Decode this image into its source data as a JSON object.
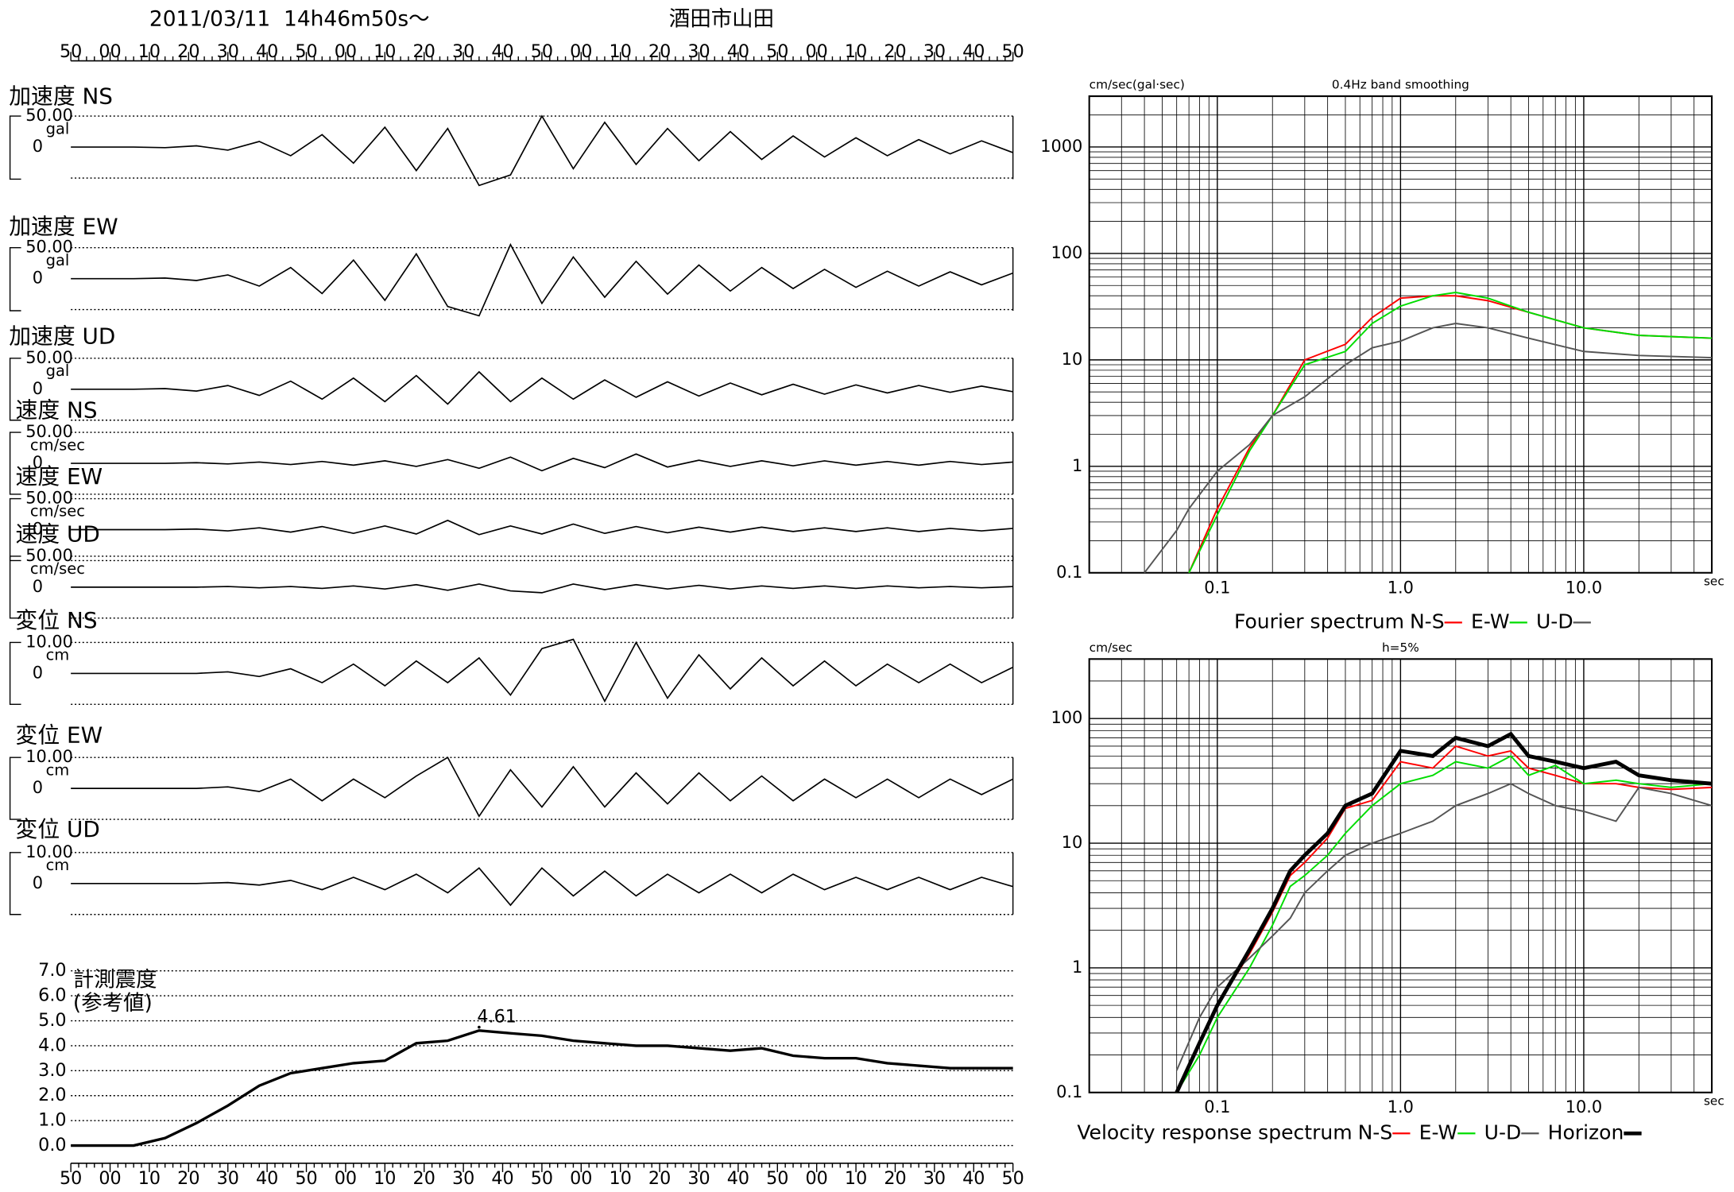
{
  "header": {
    "datetime": "2011/03/11  14h46m50s～",
    "station": "酒田市山田"
  },
  "time_labels": [
    "50",
    "00",
    "10",
    "20",
    "30",
    "40",
    "50",
    "00",
    "10",
    "20",
    "30",
    "40",
    "50",
    "00",
    "10",
    "20",
    "30",
    "40",
    "50",
    "00",
    "10",
    "20",
    "30",
    "40",
    "50"
  ],
  "chart_data": [
    {
      "type": "line",
      "title": "加速度 NS",
      "unit": "gal",
      "xlim": [
        0,
        240
      ],
      "ylim": [
        -50,
        50
      ],
      "yticks": [
        {
          "value": 50,
          "label": "50.00"
        },
        0
      ],
      "color": "#000000",
      "x": [
        0,
        8,
        16,
        24,
        32,
        40,
        48,
        56,
        64,
        72,
        80,
        88,
        96,
        104,
        112,
        120,
        128,
        136,
        144,
        152,
        160,
        168,
        176,
        184,
        192,
        200,
        208,
        216,
        224,
        232,
        240
      ],
      "values": [
        0,
        0,
        0,
        -1,
        2,
        -5,
        9,
        -14,
        20,
        -26,
        32,
        -38,
        30,
        -62,
        -45,
        50,
        -35,
        40,
        -28,
        30,
        -22,
        25,
        -20,
        18,
        -16,
        15,
        -14,
        12,
        -11,
        10,
        -9
      ]
    },
    {
      "type": "line",
      "title": "加速度 EW",
      "unit": "gal",
      "xlim": [
        0,
        240
      ],
      "ylim": [
        -50,
        50
      ],
      "yticks": [
        {
          "value": 50,
          "label": "50.00"
        },
        0
      ],
      "color": "#000000",
      "x": [
        0,
        8,
        16,
        24,
        32,
        40,
        48,
        56,
        64,
        72,
        80,
        88,
        96,
        104,
        112,
        120,
        128,
        136,
        144,
        152,
        160,
        168,
        176,
        184,
        192,
        200,
        208,
        216,
        224,
        232,
        240
      ],
      "values": [
        0,
        0,
        0,
        1,
        -3,
        6,
        -12,
        18,
        -24,
        30,
        -35,
        40,
        -45,
        -60,
        55,
        -40,
        35,
        -30,
        28,
        -25,
        22,
        -20,
        18,
        -16,
        15,
        -14,
        12,
        -12,
        11,
        -10,
        9
      ]
    },
    {
      "type": "line",
      "title": "加速度 UD",
      "unit": "gal",
      "xlim": [
        0,
        240
      ],
      "ylim": [
        -50,
        50
      ],
      "yticks": [
        {
          "value": 50,
          "label": "50.00"
        },
        0
      ],
      "color": "#000000",
      "x": [
        0,
        8,
        16,
        24,
        32,
        40,
        48,
        56,
        64,
        72,
        80,
        88,
        96,
        104,
        112,
        120,
        128,
        136,
        144,
        152,
        160,
        168,
        176,
        184,
        192,
        200,
        208,
        216,
        224,
        232,
        240
      ],
      "values": [
        0,
        0,
        0,
        1,
        -3,
        6,
        -10,
        13,
        -16,
        18,
        -20,
        22,
        -24,
        28,
        -20,
        18,
        -16,
        15,
        -13,
        12,
        -11,
        10,
        -9,
        8,
        -8,
        7,
        -6,
        6,
        -5,
        5,
        -4
      ]
    },
    {
      "type": "line",
      "title": "速度 NS",
      "unit": "cm/sec",
      "xlim": [
        0,
        240
      ],
      "ylim": [
        -50,
        50
      ],
      "yticks": [
        {
          "value": 50,
          "label": "50.00"
        },
        0
      ],
      "color": "#000000",
      "x": [
        0,
        8,
        16,
        24,
        32,
        40,
        48,
        56,
        64,
        72,
        80,
        88,
        96,
        104,
        112,
        120,
        128,
        136,
        144,
        152,
        160,
        168,
        176,
        184,
        192,
        200,
        208,
        216,
        224,
        232,
        240
      ],
      "values": [
        0,
        0,
        0,
        0,
        1,
        -1,
        2,
        -2,
        3,
        -3,
        4,
        -5,
        6,
        -8,
        10,
        -12,
        8,
        -7,
        15,
        -6,
        5,
        -5,
        4,
        -4,
        4,
        -3,
        3,
        -3,
        3,
        -2,
        2
      ]
    },
    {
      "type": "line",
      "title": "速度 EW",
      "unit": "cm/sec",
      "xlim": [
        0,
        240
      ],
      "ylim": [
        -50,
        50
      ],
      "yticks": [
        {
          "value": 50,
          "label": "50.00"
        },
        0
      ],
      "color": "#000000",
      "x": [
        0,
        8,
        16,
        24,
        32,
        40,
        48,
        56,
        64,
        72,
        80,
        88,
        96,
        104,
        112,
        120,
        128,
        136,
        144,
        152,
        160,
        168,
        176,
        184,
        192,
        200,
        208,
        216,
        224,
        232,
        240
      ],
      "values": [
        0,
        0,
        0,
        0,
        1,
        -2,
        3,
        -4,
        5,
        -6,
        6,
        -7,
        15,
        -8,
        6,
        -7,
        9,
        -6,
        5,
        -5,
        4,
        -4,
        4,
        -3,
        3,
        -3,
        3,
        -3,
        2,
        -2,
        2
      ]
    },
    {
      "type": "line",
      "title": "速度 UD",
      "unit": "cm/sec",
      "xlim": [
        0,
        240
      ],
      "ylim": [
        -50,
        50
      ],
      "yticks": [
        {
          "value": 50,
          "label": "50.00"
        },
        0
      ],
      "color": "#000000",
      "x": [
        0,
        8,
        16,
        24,
        32,
        40,
        48,
        56,
        64,
        72,
        80,
        88,
        96,
        104,
        112,
        120,
        128,
        136,
        144,
        152,
        160,
        168,
        176,
        184,
        192,
        200,
        208,
        216,
        224,
        232,
        240
      ],
      "values": [
        0,
        0,
        0,
        0,
        0,
        1,
        -1,
        1,
        -2,
        2,
        -3,
        4,
        -5,
        5,
        -6,
        -9,
        5,
        -4,
        4,
        -3,
        3,
        -3,
        2,
        -2,
        2,
        -2,
        2,
        -1,
        1,
        -1,
        1
      ]
    },
    {
      "type": "line",
      "title": "変位 NS",
      "unit": "cm",
      "xlim": [
        0,
        240
      ],
      "ylim": [
        -10,
        10
      ],
      "yticks": [
        {
          "value": 10,
          "label": "10.00"
        },
        0
      ],
      "color": "#000000",
      "x": [
        0,
        8,
        16,
        24,
        32,
        40,
        48,
        56,
        64,
        72,
        80,
        88,
        96,
        104,
        112,
        120,
        128,
        136,
        144,
        152,
        160,
        168,
        176,
        184,
        192,
        200,
        208,
        216,
        224,
        232,
        240
      ],
      "values": [
        0,
        0,
        0,
        0,
        0,
        0.5,
        -1,
        1.5,
        -3,
        3,
        -4,
        4,
        -3,
        5,
        -7,
        8,
        11,
        -9,
        10,
        -8,
        6,
        -5,
        5,
        -4,
        4,
        -4,
        3,
        -3,
        3,
        -3,
        2
      ]
    },
    {
      "type": "line",
      "title": "変位 EW",
      "unit": "cm",
      "xlim": [
        0,
        240
      ],
      "ylim": [
        -10,
        10
      ],
      "yticks": [
        {
          "value": 10,
          "label": "10.00"
        },
        0
      ],
      "color": "#000000",
      "x": [
        0,
        8,
        16,
        24,
        32,
        40,
        48,
        56,
        64,
        72,
        80,
        88,
        96,
        104,
        112,
        120,
        128,
        136,
        144,
        152,
        160,
        168,
        176,
        184,
        192,
        200,
        208,
        216,
        224,
        232,
        240
      ],
      "values": [
        0,
        0,
        0,
        0,
        0,
        0.5,
        -1,
        3,
        -4,
        3,
        -3,
        4,
        10,
        -9,
        6,
        -6,
        7,
        -6,
        5,
        -5,
        5,
        -4,
        4,
        -4,
        3,
        -3,
        3,
        -3,
        3,
        -2,
        3
      ]
    },
    {
      "type": "line",
      "title": "変位 UD",
      "unit": "cm",
      "xlim": [
        0,
        240
      ],
      "ylim": [
        -10,
        10
      ],
      "yticks": [
        {
          "value": 10,
          "label": "10.00"
        },
        0
      ],
      "color": "#000000",
      "x": [
        0,
        8,
        16,
        24,
        32,
        40,
        48,
        56,
        64,
        72,
        80,
        88,
        96,
        104,
        112,
        120,
        128,
        136,
        144,
        152,
        160,
        168,
        176,
        184,
        192,
        200,
        208,
        216,
        224,
        232,
        240
      ],
      "values": [
        0,
        0,
        0,
        0,
        0,
        0.3,
        -0.5,
        1,
        -2,
        2,
        -2,
        3,
        -3,
        5,
        -7,
        5,
        -4,
        4,
        -4,
        3,
        -3,
        3,
        -3,
        3,
        -2,
        2,
        -2,
        2,
        -2,
        2,
        -1
      ]
    },
    {
      "type": "step",
      "title": "計測震度",
      "subtitle": "(参考値)",
      "xlim": [
        0,
        240
      ],
      "ylim": [
        0,
        7
      ],
      "color": "#000000",
      "yticks": [
        {
          "value": 0,
          "label": "0.0"
        },
        {
          "value": 1,
          "label": "1.0"
        },
        {
          "value": 2,
          "label": "2.0"
        },
        {
          "value": 3,
          "label": "3.0"
        },
        {
          "value": 4,
          "label": "4.0"
        },
        {
          "value": 5,
          "label": "5.0"
        },
        {
          "value": 6,
          "label": "6.0"
        },
        {
          "value": 7,
          "label": "7.0"
        }
      ],
      "x": [
        0,
        8,
        16,
        24,
        32,
        40,
        48,
        56,
        64,
        72,
        80,
        88,
        96,
        104,
        112,
        120,
        128,
        136,
        144,
        152,
        160,
        168,
        176,
        184,
        192,
        200,
        208,
        216,
        224,
        232,
        240
      ],
      "values": [
        0,
        0,
        0,
        0.3,
        0.9,
        1.6,
        2.4,
        2.9,
        3.1,
        3.3,
        3.4,
        4.1,
        4.2,
        4.61,
        4.5,
        4.4,
        4.2,
        4.1,
        4.0,
        4.0,
        3.9,
        3.8,
        3.9,
        3.6,
        3.5,
        3.5,
        3.3,
        3.2,
        3.1,
        3.1,
        3.1
      ],
      "value_labels": [
        null,
        null,
        null,
        null,
        null,
        null,
        null,
        null,
        null,
        null,
        null,
        null,
        null,
        "4.61",
        null,
        null,
        null,
        null,
        null,
        null,
        null,
        null,
        null,
        null,
        null,
        null,
        null,
        null,
        null,
        null,
        null
      ]
    },
    {
      "type": "loglog",
      "y_label": "cm/sec(gal·sec)",
      "subtitle": "0.4Hz band smoothing",
      "x_label": "sec",
      "legend_title": "Fourier spectrum",
      "log_scale": true,
      "grid": true,
      "xlim": [
        0.02,
        50
      ],
      "ylim": [
        0.1,
        3000
      ],
      "xticks": [
        0.1,
        {
          "value": 1,
          "label": "1.0"
        },
        {
          "value": 10,
          "label": "10.0"
        }
      ],
      "yticks": [
        0.1,
        1,
        10,
        100,
        1000
      ],
      "x": [
        0.04,
        0.06,
        0.07,
        0.1,
        0.15,
        0.2,
        0.3,
        0.5,
        0.7,
        1,
        1.5,
        2,
        3,
        5,
        10,
        20,
        50
      ],
      "series": [
        {
          "name": "N-S",
          "color": "#ff0000",
          "values": [
            null,
            null,
            0.1,
            0.4,
            1.5,
            3,
            10,
            14,
            25,
            38,
            40,
            40,
            36,
            28,
            20,
            17,
            16
          ]
        },
        {
          "name": "E-W",
          "color": "#00dd00",
          "values": [
            null,
            null,
            0.1,
            0.35,
            1.4,
            3,
            9,
            12,
            22,
            32,
            40,
            43,
            38,
            28,
            20,
            17,
            16
          ]
        },
        {
          "name": "U-D",
          "color": "#555555",
          "values": [
            0.1,
            0.25,
            0.4,
            0.9,
            1.6,
            3,
            4.5,
            9,
            13,
            15,
            20,
            22,
            20,
            16,
            12,
            11,
            10.5
          ]
        }
      ]
    },
    {
      "type": "loglog",
      "y_label": "cm/sec",
      "subtitle": "h=5%",
      "x_label": "sec",
      "legend_title": "Velocity response spectrum",
      "log_scale": true,
      "grid": true,
      "xlim": [
        0.02,
        50
      ],
      "ylim": [
        0.1,
        300
      ],
      "xticks": [
        0.1,
        {
          "value": 1,
          "label": "1.0"
        },
        {
          "value": 10,
          "label": "10.0"
        }
      ],
      "yticks": [
        0.1,
        1,
        10,
        100
      ],
      "x": [
        0.06,
        0.08,
        0.1,
        0.15,
        0.2,
        0.25,
        0.3,
        0.4,
        0.5,
        0.7,
        1,
        1.5,
        2,
        3,
        4,
        5,
        7,
        10,
        15,
        20,
        30,
        50
      ],
      "series": [
        {
          "name": "N-S",
          "color": "#ff0000",
          "values": [
            0.1,
            0.25,
            0.5,
            1.3,
            2.8,
            5.5,
            7,
            11,
            19,
            22,
            45,
            40,
            60,
            50,
            55,
            40,
            35,
            30,
            30,
            28,
            27,
            28
          ]
        },
        {
          "name": "E-W",
          "color": "#00dd00",
          "values": [
            0.1,
            0.2,
            0.4,
            1.0,
            2.2,
            4.5,
            5.5,
            8,
            12,
            20,
            30,
            35,
            45,
            40,
            50,
            35,
            42,
            30,
            32,
            30,
            28,
            30
          ]
        },
        {
          "name": "U-D",
          "color": "#555555",
          "values": [
            0.15,
            0.4,
            0.7,
            1.2,
            1.8,
            2.5,
            4,
            6,
            8,
            10,
            12,
            15,
            20,
            25,
            30,
            25,
            20,
            18,
            15,
            28,
            25,
            20
          ]
        },
        {
          "name": "Horizon",
          "color": "#000000",
          "values": [
            0.1,
            0.25,
            0.5,
            1.4,
            3,
            6,
            8,
            12,
            20,
            25,
            55,
            50,
            70,
            60,
            75,
            50,
            45,
            40,
            45,
            35,
            32,
            30
          ]
        }
      ]
    }
  ]
}
